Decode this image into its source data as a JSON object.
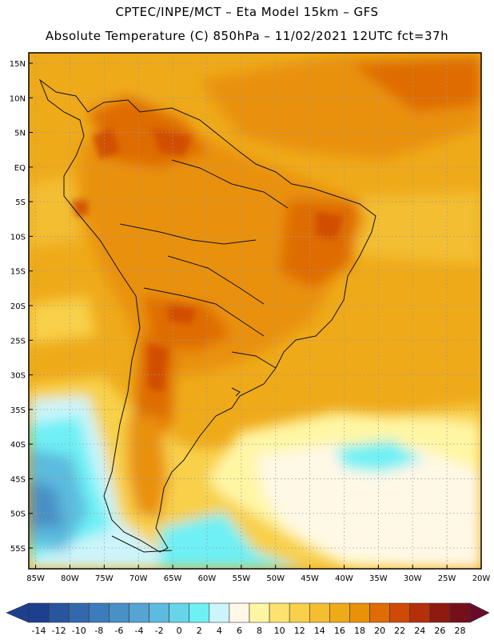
{
  "header": {
    "line1": "CPTEC/INPE/MCT –  Eta Model 15km – GFS",
    "line2": "Absolute Temperature (C) 850hPa – 11/02/2021 12UTC fct=37h"
  },
  "map": {
    "lat_labels": [
      "15N",
      "10N",
      "5N",
      "EQ",
      "5S",
      "10S",
      "15S",
      "20S",
      "25S",
      "30S",
      "35S",
      "40S",
      "45S",
      "50S",
      "55S"
    ],
    "lon_labels": [
      "85W",
      "80W",
      "75W",
      "70W",
      "65W",
      "60W",
      "55W",
      "50W",
      "45W",
      "40W",
      "35W",
      "30W",
      "25W",
      "20W"
    ],
    "lat_values": [
      15,
      10,
      5,
      0,
      -5,
      -10,
      -15,
      -20,
      -25,
      -30,
      -35,
      -40,
      -45,
      -50,
      -55
    ],
    "lon_values": [
      -85,
      -80,
      -75,
      -70,
      -65,
      -60,
      -55,
      -50,
      -45,
      -40,
      -35,
      -30,
      -25,
      -20
    ],
    "extent": {
      "lon_min": -86,
      "lon_max": -20,
      "lat_min": -58,
      "lat_max": 16.5
    }
  },
  "colorbar": {
    "labels": [
      "-14",
      "-12",
      "-10",
      "-8",
      "-6",
      "-4",
      "-2",
      "0",
      "2",
      "4",
      "6",
      "8",
      "10",
      "12",
      "14",
      "16",
      "18",
      "20",
      "22",
      "24",
      "26",
      "28"
    ],
    "colors": [
      "#1c3f8f",
      "#28559e",
      "#3368ac",
      "#3c7cba",
      "#4890c6",
      "#56a4d2",
      "#5cbbde",
      "#66d5ea",
      "#6ef0f5",
      "#ccf5fb",
      "#fff8e6",
      "#fff6a4",
      "#fde36e",
      "#f8d04a",
      "#f3be32",
      "#efaa1a",
      "#e99108",
      "#df6c06",
      "#cf4a06",
      "#b4300a",
      "#8e1a10",
      "#75101a"
    ]
  }
}
